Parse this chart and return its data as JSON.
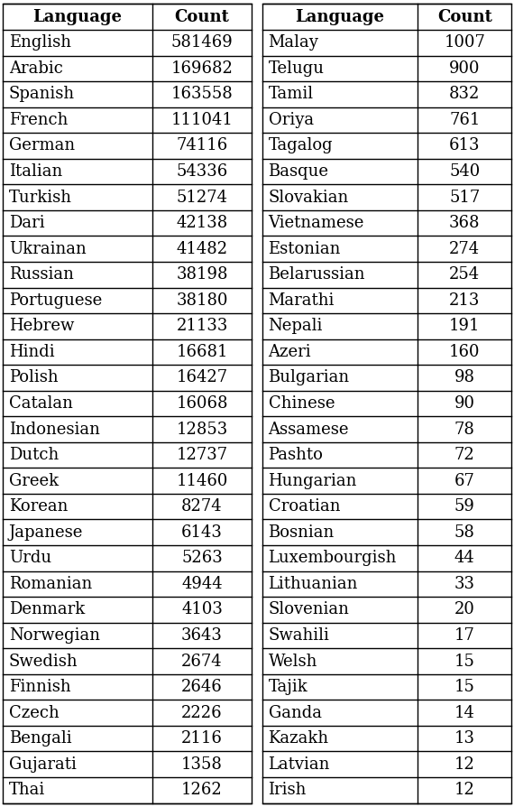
{
  "left_table": {
    "headers": [
      "Language",
      "Count"
    ],
    "rows": [
      [
        "English",
        "581469"
      ],
      [
        "Arabic",
        "169682"
      ],
      [
        "Spanish",
        "163558"
      ],
      [
        "French",
        "111041"
      ],
      [
        "German",
        "74116"
      ],
      [
        "Italian",
        "54336"
      ],
      [
        "Turkish",
        "51274"
      ],
      [
        "Dari",
        "42138"
      ],
      [
        "Ukrainan",
        "41482"
      ],
      [
        "Russian",
        "38198"
      ],
      [
        "Portuguese",
        "38180"
      ],
      [
        "Hebrew",
        "21133"
      ],
      [
        "Hindi",
        "16681"
      ],
      [
        "Polish",
        "16427"
      ],
      [
        "Catalan",
        "16068"
      ],
      [
        "Indonesian",
        "12853"
      ],
      [
        "Dutch",
        "12737"
      ],
      [
        "Greek",
        "11460"
      ],
      [
        "Korean",
        "8274"
      ],
      [
        "Japanese",
        "6143"
      ],
      [
        "Urdu",
        "5263"
      ],
      [
        "Romanian",
        "4944"
      ],
      [
        "Denmark",
        "4103"
      ],
      [
        "Norwegian",
        "3643"
      ],
      [
        "Swedish",
        "2674"
      ],
      [
        "Finnish",
        "2646"
      ],
      [
        "Czech",
        "2226"
      ],
      [
        "Bengali",
        "2116"
      ],
      [
        "Gujarati",
        "1358"
      ],
      [
        "Thai",
        "1262"
      ]
    ]
  },
  "right_table": {
    "headers": [
      "Language",
      "Count"
    ],
    "rows": [
      [
        "Malay",
        "1007"
      ],
      [
        "Telugu",
        "900"
      ],
      [
        "Tamil",
        "832"
      ],
      [
        "Oriya",
        "761"
      ],
      [
        "Tagalog",
        "613"
      ],
      [
        "Basque",
        "540"
      ],
      [
        "Slovakian",
        "517"
      ],
      [
        "Vietnamese",
        "368"
      ],
      [
        "Estonian",
        "274"
      ],
      [
        "Belarussian",
        "254"
      ],
      [
        "Marathi",
        "213"
      ],
      [
        "Nepali",
        "191"
      ],
      [
        "Azeri",
        "160"
      ],
      [
        "Bulgarian",
        "98"
      ],
      [
        "Chinese",
        "90"
      ],
      [
        "Assamese",
        "78"
      ],
      [
        "Pashto",
        "72"
      ],
      [
        "Hungarian",
        "67"
      ],
      [
        "Croatian",
        "59"
      ],
      [
        "Bosnian",
        "58"
      ],
      [
        "Luxembourgish",
        "44"
      ],
      [
        "Lithuanian",
        "33"
      ],
      [
        "Slovenian",
        "20"
      ],
      [
        "Swahili",
        "17"
      ],
      [
        "Welsh",
        "15"
      ],
      [
        "Tajik",
        "15"
      ],
      [
        "Ganda",
        "14"
      ],
      [
        "Kazakh",
        "13"
      ],
      [
        "Latvian",
        "12"
      ],
      [
        "Irish",
        "12"
      ]
    ]
  },
  "font_size": 13,
  "header_font_size": 13,
  "bg_color": "white",
  "text_color": "black",
  "border_color": "black",
  "n_rows": 30,
  "fig_width": 5.7,
  "fig_height": 8.94,
  "dpi": 100
}
